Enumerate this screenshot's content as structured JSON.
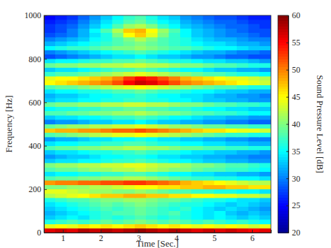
{
  "chart_data": {
    "type": "heatmap",
    "xlabel": "Time [Sec.]",
    "ylabel": "Frequency [Hz]",
    "colorbar_label": "Sound Pressure Level [dB]",
    "xlim": [
      0.5,
      6.5
    ],
    "ylim": [
      0,
      1000
    ],
    "xticks": [
      1,
      2,
      3,
      4,
      5,
      6
    ],
    "yticks": [
      0,
      200,
      400,
      600,
      800,
      1000
    ],
    "zlim": [
      20,
      60
    ],
    "zticks": [
      20,
      25,
      30,
      35,
      40,
      45,
      50,
      55,
      60
    ],
    "x": [
      0.65,
      0.95,
      1.25,
      1.55,
      1.85,
      2.15,
      2.45,
      2.75,
      3.05,
      3.35,
      3.65,
      3.95,
      4.25,
      4.55,
      4.85,
      5.15,
      5.45,
      5.75,
      6.05,
      6.35
    ],
    "y": [
      10,
      30,
      50,
      70,
      90,
      110,
      130,
      150,
      170,
      190,
      210,
      230,
      250,
      270,
      290,
      310,
      330,
      350,
      370,
      390,
      410,
      430,
      450,
      470,
      490,
      510,
      530,
      550,
      570,
      590,
      610,
      630,
      650,
      670,
      690,
      710,
      730,
      750,
      770,
      790,
      810,
      830,
      850,
      870,
      890,
      910,
      930,
      950,
      970,
      990
    ],
    "values": [
      [
        56,
        57,
        56,
        58,
        57,
        58,
        57,
        58,
        59,
        58,
        57,
        58,
        57,
        56,
        57,
        56,
        57,
        56,
        55,
        56
      ],
      [
        44,
        45,
        44,
        46,
        45,
        46,
        45,
        46,
        47,
        46,
        45,
        46,
        45,
        44,
        45,
        44,
        45,
        44,
        43,
        44
      ],
      [
        36,
        37,
        38,
        37,
        38,
        39,
        38,
        39,
        40,
        39,
        38,
        39,
        38,
        37,
        38,
        37,
        36,
        37,
        36,
        35
      ],
      [
        33,
        34,
        35,
        34,
        36,
        37,
        36,
        37,
        38,
        37,
        36,
        37,
        36,
        35,
        34,
        35,
        34,
        33,
        34,
        33
      ],
      [
        32,
        33,
        34,
        35,
        36,
        37,
        38,
        38,
        39,
        38,
        37,
        38,
        36,
        35,
        34,
        35,
        33,
        32,
        33,
        32
      ],
      [
        33,
        34,
        35,
        36,
        37,
        38,
        37,
        38,
        39,
        38,
        37,
        36,
        37,
        35,
        34,
        33,
        34,
        33,
        32,
        31
      ],
      [
        34,
        35,
        36,
        37,
        38,
        39,
        38,
        39,
        40,
        39,
        38,
        37,
        36,
        36,
        35,
        34,
        33,
        34,
        33,
        32
      ],
      [
        36,
        37,
        38,
        38,
        39,
        40,
        40,
        41,
        41,
        40,
        39,
        39,
        38,
        37,
        36,
        36,
        35,
        34,
        34,
        33
      ],
      [
        42,
        43,
        44,
        45,
        46,
        47,
        47,
        48,
        48,
        47,
        47,
        46,
        46,
        45,
        45,
        44,
        44,
        43,
        43,
        42
      ],
      [
        44,
        44,
        43,
        42,
        41,
        41,
        40,
        40,
        41,
        40,
        39,
        38,
        38,
        37,
        37,
        36,
        36,
        35,
        35,
        34
      ],
      [
        40,
        40,
        41,
        41,
        42,
        42,
        43,
        44,
        45,
        45,
        46,
        46,
        47,
        47,
        48,
        48,
        47,
        47,
        46,
        46
      ],
      [
        49,
        50,
        50,
        51,
        51,
        52,
        52,
        53,
        53,
        52,
        51,
        50,
        48,
        47,
        46,
        45,
        44,
        43,
        42,
        42
      ],
      [
        38,
        39,
        39,
        40,
        40,
        41,
        41,
        42,
        42,
        41,
        40,
        39,
        38,
        37,
        37,
        36,
        36,
        35,
        35,
        34
      ],
      [
        34,
        35,
        35,
        36,
        36,
        37,
        37,
        38,
        38,
        37,
        36,
        35,
        35,
        34,
        34,
        33,
        33,
        32,
        32,
        31
      ],
      [
        38,
        39,
        39,
        40,
        41,
        41,
        42,
        42,
        43,
        42,
        41,
        40,
        40,
        39,
        38,
        38,
        37,
        37,
        36,
        35
      ],
      [
        40,
        41,
        41,
        42,
        42,
        43,
        43,
        44,
        44,
        43,
        42,
        42,
        41,
        40,
        40,
        39,
        38,
        38,
        37,
        36
      ],
      [
        33,
        34,
        34,
        35,
        35,
        36,
        37,
        37,
        38,
        37,
        36,
        35,
        35,
        34,
        33,
        33,
        32,
        32,
        31,
        31
      ],
      [
        31,
        32,
        33,
        33,
        34,
        35,
        35,
        36,
        36,
        35,
        34,
        34,
        33,
        33,
        32,
        32,
        31,
        31,
        30,
        30
      ],
      [
        33,
        34,
        34,
        35,
        36,
        36,
        37,
        37,
        38,
        37,
        36,
        36,
        35,
        34,
        34,
        33,
        33,
        32,
        32,
        31
      ],
      [
        38,
        39,
        39,
        40,
        40,
        41,
        41,
        42,
        42,
        41,
        41,
        40,
        39,
        39,
        38,
        38,
        37,
        37,
        36,
        36
      ],
      [
        34,
        35,
        35,
        36,
        36,
        37,
        37,
        38,
        38,
        37,
        36,
        36,
        35,
        35,
        34,
        34,
        33,
        33,
        32,
        32
      ],
      [
        31,
        32,
        32,
        33,
        34,
        34,
        35,
        35,
        36,
        35,
        34,
        34,
        33,
        33,
        32,
        32,
        31,
        31,
        30,
        30
      ],
      [
        38,
        39,
        40,
        41,
        42,
        43,
        44,
        44,
        45,
        44,
        43,
        42,
        41,
        40,
        39,
        38,
        37,
        37,
        36,
        36
      ],
      [
        47,
        48,
        48,
        49,
        49,
        50,
        51,
        51,
        52,
        51,
        50,
        49,
        48,
        47,
        46,
        46,
        45,
        44,
        44,
        43
      ],
      [
        39,
        40,
        41,
        41,
        42,
        42,
        43,
        43,
        44,
        43,
        42,
        41,
        41,
        40,
        39,
        39,
        38,
        38,
        37,
        37
      ],
      [
        30,
        31,
        31,
        32,
        33,
        33,
        34,
        34,
        35,
        34,
        33,
        33,
        32,
        32,
        31,
        31,
        30,
        30,
        29,
        29
      ],
      [
        33,
        34,
        34,
        35,
        35,
        36,
        37,
        37,
        38,
        37,
        36,
        35,
        35,
        34,
        33,
        33,
        32,
        32,
        31,
        31
      ],
      [
        38,
        38,
        39,
        39,
        40,
        40,
        41,
        41,
        42,
        41,
        40,
        40,
        39,
        38,
        38,
        37,
        37,
        36,
        35,
        35
      ],
      [
        35,
        36,
        36,
        37,
        37,
        38,
        38,
        39,
        39,
        38,
        38,
        37,
        37,
        36,
        35,
        35,
        34,
        34,
        33,
        33
      ],
      [
        39,
        40,
        40,
        41,
        41,
        42,
        42,
        43,
        43,
        42,
        42,
        41,
        40,
        40,
        39,
        38,
        38,
        37,
        37,
        36
      ],
      [
        33,
        34,
        34,
        35,
        35,
        36,
        36,
        37,
        37,
        36,
        36,
        35,
        35,
        34,
        33,
        33,
        32,
        32,
        31,
        31
      ],
      [
        32,
        33,
        33,
        34,
        35,
        35,
        36,
        36,
        37,
        36,
        35,
        35,
        34,
        34,
        33,
        32,
        32,
        31,
        31,
        30
      ],
      [
        34,
        35,
        35,
        36,
        36,
        37,
        38,
        38,
        39,
        38,
        37,
        37,
        36,
        35,
        35,
        34,
        33,
        33,
        32,
        32
      ],
      [
        38,
        39,
        39,
        40,
        41,
        42,
        43,
        44,
        45,
        44,
        43,
        42,
        41,
        40,
        39,
        38,
        38,
        37,
        36,
        36
      ],
      [
        45,
        46,
        47,
        48,
        49,
        50,
        52,
        55,
        57,
        56,
        54,
        52,
        50,
        49,
        48,
        47,
        46,
        45,
        44,
        43
      ],
      [
        44,
        45,
        45,
        46,
        47,
        48,
        50,
        53,
        55,
        54,
        52,
        50,
        48,
        47,
        46,
        45,
        44,
        44,
        43,
        42
      ],
      [
        37,
        38,
        38,
        39,
        40,
        41,
        42,
        43,
        44,
        43,
        42,
        41,
        40,
        39,
        38,
        38,
        37,
        36,
        36,
        35
      ],
      [
        33,
        34,
        34,
        35,
        36,
        37,
        38,
        38,
        39,
        38,
        37,
        36,
        35,
        35,
        34,
        33,
        33,
        32,
        32,
        31
      ],
      [
        39,
        40,
        40,
        41,
        41,
        42,
        42,
        43,
        43,
        42,
        42,
        41,
        40,
        40,
        39,
        38,
        38,
        37,
        36,
        36
      ],
      [
        34,
        35,
        35,
        36,
        37,
        37,
        38,
        38,
        39,
        38,
        37,
        36,
        36,
        35,
        34,
        34,
        33,
        33,
        32,
        31
      ],
      [
        28,
        29,
        30,
        31,
        32,
        33,
        34,
        34,
        35,
        34,
        33,
        33,
        32,
        31,
        31,
        30,
        29,
        29,
        28,
        28
      ],
      [
        30,
        31,
        32,
        33,
        34,
        35,
        36,
        37,
        38,
        37,
        36,
        35,
        34,
        33,
        32,
        32,
        31,
        30,
        30,
        29
      ],
      [
        35,
        36,
        37,
        37,
        38,
        39,
        40,
        40,
        41,
        40,
        39,
        38,
        38,
        37,
        36,
        35,
        35,
        34,
        33,
        33
      ],
      [
        32,
        33,
        34,
        35,
        36,
        37,
        38,
        39,
        40,
        39,
        38,
        37,
        36,
        35,
        34,
        34,
        33,
        32,
        32,
        31
      ],
      [
        30,
        31,
        32,
        33,
        35,
        36,
        38,
        40,
        42,
        40,
        38,
        37,
        36,
        34,
        33,
        32,
        32,
        31,
        30,
        30
      ],
      [
        28,
        29,
        30,
        32,
        34,
        36,
        40,
        45,
        47,
        44,
        40,
        37,
        35,
        33,
        32,
        31,
        30,
        30,
        29,
        28
      ],
      [
        27,
        28,
        30,
        32,
        35,
        38,
        42,
        47,
        48,
        45,
        41,
        38,
        35,
        33,
        32,
        31,
        30,
        29,
        28,
        28
      ],
      [
        27,
        28,
        29,
        31,
        33,
        35,
        38,
        41,
        42,
        40,
        37,
        35,
        33,
        32,
        31,
        30,
        29,
        29,
        28,
        27
      ],
      [
        26,
        27,
        28,
        30,
        32,
        34,
        36,
        38,
        39,
        37,
        35,
        34,
        32,
        31,
        30,
        29,
        29,
        28,
        27,
        27
      ],
      [
        25,
        26,
        27,
        29,
        31,
        33,
        35,
        37,
        38,
        36,
        34,
        33,
        31,
        30,
        29,
        28,
        28,
        27,
        26,
        26
      ]
    ]
  }
}
